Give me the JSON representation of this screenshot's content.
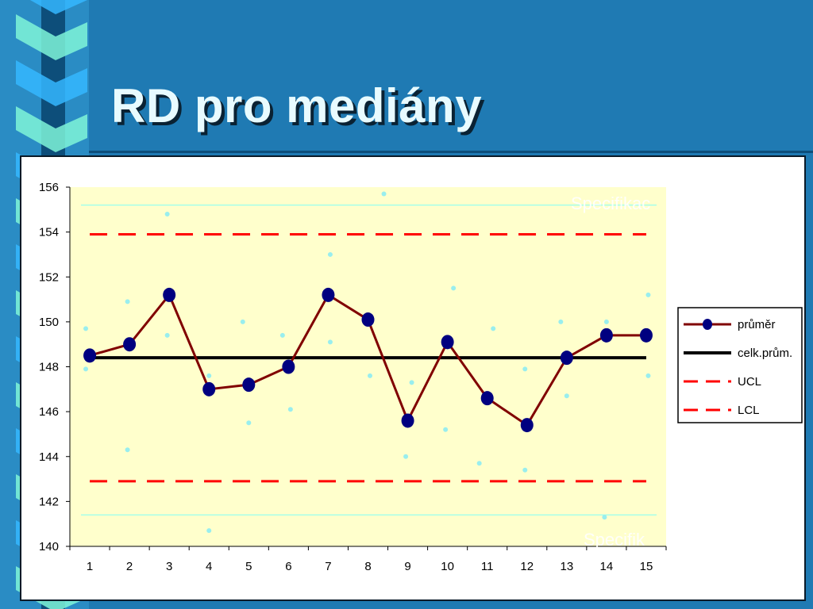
{
  "slide": {
    "title": "RD pro mediány"
  },
  "colors": {
    "background": "#1f7ab3",
    "plot_area": "#ffffcc",
    "series_line": "#800000",
    "series_marker": "#000080",
    "center_line": "#000000",
    "limits": "#ff0000",
    "spec_line": "#99ffee",
    "scatter": "#99eeee"
  },
  "chart_data": {
    "type": "line",
    "x": [
      1,
      2,
      3,
      4,
      5,
      6,
      7,
      8,
      9,
      10,
      11,
      12,
      13,
      14,
      15
    ],
    "ylim": [
      140,
      156
    ],
    "yticks": [
      140,
      142,
      144,
      146,
      148,
      150,
      152,
      154,
      156
    ],
    "grid": false,
    "legend_position": "right",
    "series": [
      {
        "name": "průměr",
        "style": "line-marker",
        "values": [
          148.5,
          149.0,
          151.2,
          147.0,
          147.2,
          148.0,
          151.2,
          150.1,
          145.6,
          149.1,
          146.6,
          145.4,
          148.4,
          149.4,
          149.4
        ]
      },
      {
        "name": "celk.prům.",
        "style": "solid",
        "values": [
          148.4,
          148.4,
          148.4,
          148.4,
          148.4,
          148.4,
          148.4,
          148.4,
          148.4,
          148.4,
          148.4,
          148.4,
          148.4,
          148.4,
          148.4
        ]
      },
      {
        "name": "UCL",
        "style": "dashed",
        "values": [
          153.9,
          153.9,
          153.9,
          153.9,
          153.9,
          153.9,
          153.9,
          153.9,
          153.9,
          153.9,
          153.9,
          153.9,
          153.9,
          153.9,
          153.9
        ]
      },
      {
        "name": "LCL",
        "style": "dashed",
        "values": [
          142.9,
          142.9,
          142.9,
          142.9,
          142.9,
          142.9,
          142.9,
          142.9,
          142.9,
          142.9,
          142.9,
          142.9,
          142.9,
          142.9,
          142.9
        ]
      }
    ],
    "spec_lines": [
      155.2,
      141.4
    ],
    "scatter_points": [
      [
        0.9,
        149.7
      ],
      [
        0.9,
        147.9
      ],
      [
        1.95,
        150.9
      ],
      [
        1.95,
        144.3
      ],
      [
        2.95,
        154.8
      ],
      [
        2.95,
        149.4
      ],
      [
        4.0,
        147.6
      ],
      [
        4.0,
        140.7
      ],
      [
        4.85,
        150.0
      ],
      [
        5.0,
        145.5
      ],
      [
        5.85,
        149.4
      ],
      [
        6.05,
        146.1
      ],
      [
        7.05,
        153.0
      ],
      [
        7.05,
        149.1
      ],
      [
        8.05,
        147.6
      ],
      [
        8.4,
        155.7
      ],
      [
        8.95,
        144.0
      ],
      [
        9.1,
        147.3
      ],
      [
        9.95,
        145.2
      ],
      [
        10.15,
        151.5
      ],
      [
        10.8,
        143.7
      ],
      [
        11.15,
        149.7
      ],
      [
        11.95,
        147.9
      ],
      [
        11.95,
        143.4
      ],
      [
        12.85,
        150.0
      ],
      [
        13.0,
        146.7
      ],
      [
        14.0,
        150.0
      ],
      [
        13.95,
        141.3
      ],
      [
        15.05,
        151.2
      ],
      [
        15.05,
        147.6
      ]
    ],
    "overlay_labels": [
      "Specifikac",
      "Specifik"
    ]
  }
}
